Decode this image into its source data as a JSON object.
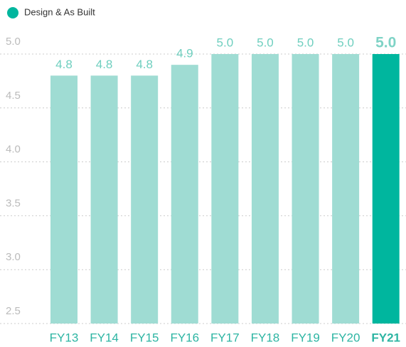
{
  "chart_data": {
    "type": "bar",
    "legend": {
      "label": "Design & As Built",
      "color": "#00b69e"
    },
    "categories": [
      "FY13",
      "FY14",
      "FY15",
      "FY16",
      "FY17",
      "FY18",
      "FY19",
      "FY20",
      "FY21"
    ],
    "values": [
      4.8,
      4.8,
      4.8,
      4.9,
      5.0,
      5.0,
      5.0,
      5.0,
      5.0
    ],
    "value_labels": [
      "4.8",
      "4.8",
      "4.8",
      "4.9",
      "5.0",
      "5.0",
      "5.0",
      "5.0",
      "5.0"
    ],
    "colors": [
      "#9fdcd3",
      "#9fdcd3",
      "#9fdcd3",
      "#9fdcd3",
      "#9fdcd3",
      "#9fdcd3",
      "#9fdcd3",
      "#9fdcd3",
      "#00b69e"
    ],
    "ylim": [
      2.5,
      5.0
    ],
    "yticks": [
      2.5,
      {
        "value": 3,
        "label": "3.0"
      },
      3.5,
      {
        "value": 4,
        "label": "4.0"
      },
      4.5,
      {
        "value": 5,
        "label": "5.0"
      }
    ],
    "grid": true
  }
}
